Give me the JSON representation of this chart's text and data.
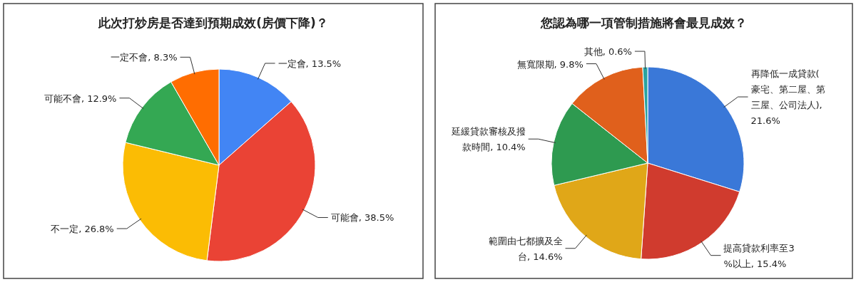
{
  "chart_data": [
    {
      "type": "pie",
      "title": "此次打炒房是否達到預期成效(房價下降)？",
      "categories": [
        "一定會",
        "可能會",
        "不一定",
        "可能不會",
        "一定不會"
      ],
      "values": [
        13.5,
        38.5,
        26.8,
        12.9,
        8.3
      ],
      "colors": [
        "#4285f4",
        "#ea4335",
        "#fbbc04",
        "#34a853",
        "#ff6d01"
      ],
      "value_labels": [
        ", 13.5%",
        ", 38.5%",
        ", 26.8%",
        ", 12.9%",
        ", 8.3%"
      ],
      "legend": false
    },
    {
      "type": "pie",
      "title": "您認為哪一項管制措施將會最見成效？",
      "categories": [
        "再降低一成貸款(豪宅、第二屋、第三屋、公司法人)",
        "提高貸款利率至3%以上",
        "範圍由七都擴及全台",
        "延緩貸款審核及撥款時間",
        "無寬限期",
        "其他"
      ],
      "values": [
        21.6,
        15.4,
        14.6,
        10.4,
        9.8,
        0.6
      ],
      "colors": [
        "#3a78d8",
        "#d03b2e",
        "#e0a718",
        "#2e9a50",
        "#e0601c",
        "#2aa3a0"
      ],
      "value_labels": [
        ", 21.6%",
        ", 15.4%",
        ", 14.6%",
        ", 10.4%",
        ", 9.8%",
        ", 0.6%"
      ],
      "legend": false
    }
  ]
}
